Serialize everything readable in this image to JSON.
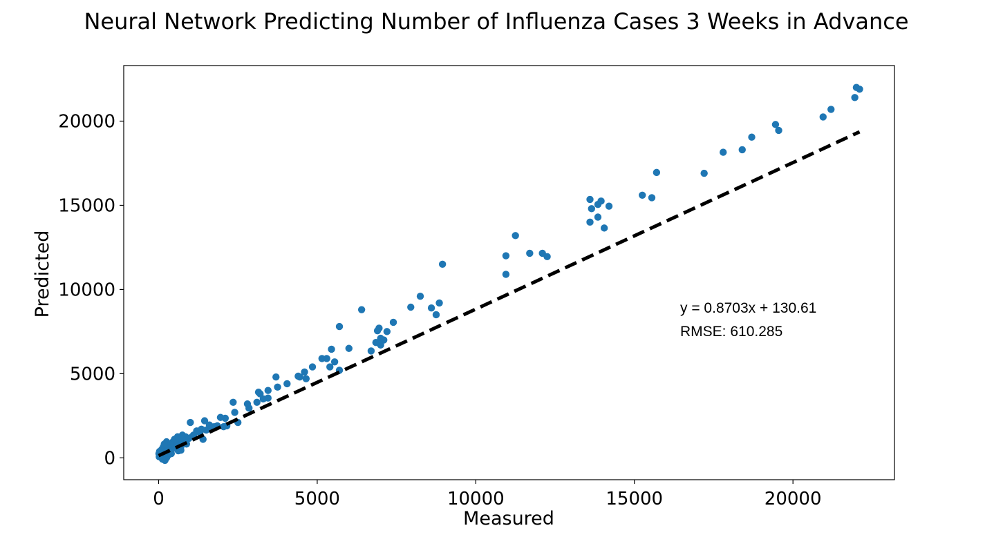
{
  "chart_data": {
    "type": "scatter",
    "title": "Neural Network Predicting Number of Influenza Cases 3 Weeks in Advance",
    "xlabel": "Measured",
    "ylabel": "Predicted",
    "xlim": [
      -1100,
      23200
    ],
    "ylim": [
      -1300,
      23300
    ],
    "xticks": [
      0,
      5000,
      10000,
      15000,
      20000
    ],
    "yticks": [
      0,
      5000,
      10000,
      15000,
      20000
    ],
    "grid": false,
    "point_color": "#1f77b4",
    "fit_line": {
      "slope": 0.8703,
      "intercept": 130.61,
      "x_range": [
        0,
        22100
      ],
      "color": "#000000",
      "style": "dashed"
    },
    "annotations": [
      "y = 0.8703x + 130.61",
      "RMSE:  610.285"
    ],
    "points": [
      [
        22000,
        22000
      ],
      [
        22100,
        21900
      ],
      [
        21950,
        21400
      ],
      [
        21200,
        20700
      ],
      [
        20950,
        20250
      ],
      [
        19550,
        19450
      ],
      [
        19450,
        19800
      ],
      [
        18700,
        19050
      ],
      [
        18400,
        18300
      ],
      [
        17800,
        18150
      ],
      [
        17200,
        16900
      ],
      [
        15700,
        16950
      ],
      [
        15550,
        15450
      ],
      [
        15250,
        15600
      ],
      [
        14200,
        14950
      ],
      [
        14050,
        13650
      ],
      [
        13950,
        15250
      ],
      [
        13850,
        15050
      ],
      [
        13850,
        14300
      ],
      [
        13650,
        14800
      ],
      [
        13600,
        15350
      ],
      [
        13600,
        14000
      ],
      [
        12250,
        11950
      ],
      [
        12100,
        12150
      ],
      [
        11700,
        12150
      ],
      [
        11250,
        13200
      ],
      [
        10950,
        12000
      ],
      [
        10950,
        10900
      ],
      [
        8950,
        11500
      ],
      [
        8850,
        9200
      ],
      [
        8750,
        8500
      ],
      [
        8600,
        8900
      ],
      [
        8250,
        9600
      ],
      [
        7950,
        8950
      ],
      [
        7400,
        8050
      ],
      [
        7200,
        7500
      ],
      [
        7100,
        7000
      ],
      [
        7000,
        7100
      ],
      [
        7000,
        6700
      ],
      [
        6950,
        7700
      ],
      [
        6900,
        7550
      ],
      [
        6850,
        6850
      ],
      [
        6700,
        6350
      ],
      [
        6400,
        8800
      ],
      [
        6000,
        6500
      ],
      [
        5700,
        5200
      ],
      [
        5700,
        7800
      ],
      [
        5550,
        5700
      ],
      [
        5450,
        6450
      ],
      [
        5400,
        5400
      ],
      [
        5300,
        5900
      ],
      [
        5150,
        5900
      ],
      [
        4850,
        5400
      ],
      [
        4650,
        4700
      ],
      [
        4600,
        5100
      ],
      [
        4450,
        4800
      ],
      [
        4400,
        4850
      ],
      [
        4050,
        4400
      ],
      [
        3750,
        4200
      ],
      [
        3700,
        4800
      ],
      [
        3450,
        3550
      ],
      [
        3450,
        4000
      ],
      [
        3300,
        3500
      ],
      [
        3200,
        3800
      ],
      [
        3150,
        3900
      ],
      [
        3100,
        3300
      ],
      [
        2850,
        2950
      ],
      [
        2800,
        3200
      ],
      [
        2500,
        2100
      ],
      [
        2400,
        2700
      ],
      [
        2350,
        3300
      ],
      [
        2150,
        1900
      ],
      [
        2100,
        2350
      ],
      [
        2050,
        1850
      ],
      [
        1950,
        2400
      ],
      [
        1850,
        1900
      ],
      [
        1750,
        1850
      ],
      [
        1600,
        1950
      ],
      [
        1500,
        1650
      ],
      [
        1450,
        2200
      ],
      [
        1400,
        1100
      ],
      [
        1350,
        1700
      ],
      [
        1200,
        1600
      ],
      [
        1100,
        1350
      ],
      [
        1000,
        2100
      ],
      [
        950,
        1150
      ],
      [
        850,
        1250
      ],
      [
        800,
        1000
      ],
      [
        750,
        1350
      ],
      [
        700,
        650
      ],
      [
        700,
        450
      ],
      [
        650,
        850
      ],
      [
        600,
        1250
      ],
      [
        600,
        900
      ],
      [
        550,
        750
      ],
      [
        500,
        1100
      ],
      [
        450,
        550
      ],
      [
        450,
        950
      ],
      [
        400,
        700
      ],
      [
        400,
        250
      ],
      [
        350,
        800
      ],
      [
        350,
        450
      ],
      [
        300,
        600
      ],
      [
        300,
        150
      ],
      [
        250,
        950
      ],
      [
        250,
        550
      ],
      [
        250,
        0
      ],
      [
        200,
        400
      ],
      [
        200,
        -150
      ],
      [
        150,
        650
      ],
      [
        150,
        250
      ],
      [
        100,
        500
      ],
      [
        100,
        100
      ],
      [
        80,
        300
      ],
      [
        50,
        200
      ],
      [
        30,
        380
      ],
      [
        20,
        60
      ],
      [
        10,
        250
      ],
      [
        120,
        -80
      ],
      [
        180,
        820
      ],
      [
        520,
        620
      ],
      [
        620,
        420
      ],
      [
        720,
        1120
      ],
      [
        880,
        820
      ],
      [
        1050,
        1250
      ],
      [
        1300,
        1500
      ],
      [
        1650,
        1700
      ]
    ]
  }
}
